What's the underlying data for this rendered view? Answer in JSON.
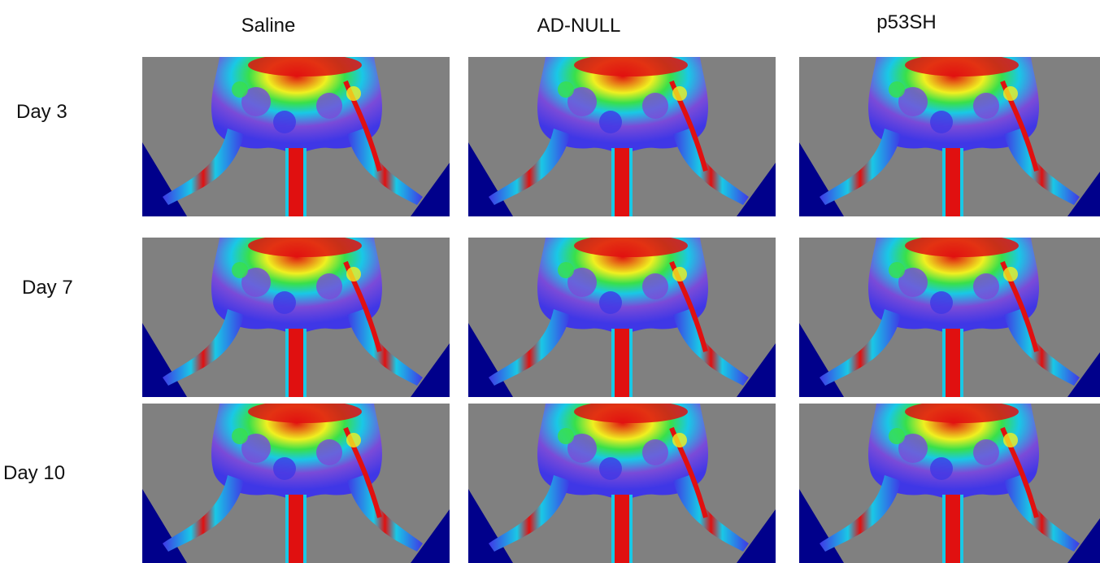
{
  "columns": [
    "Saline",
    "AD-NULL",
    "p53SH"
  ],
  "rows": [
    "Day 3",
    "Day 7",
    "Day 10"
  ],
  "colors": {
    "background": "#808080",
    "deep_blue": "#00008b",
    "blue": "#3f37e6",
    "violet": "#7a4bd8",
    "cyan": "#19c8e6",
    "green": "#39e04a",
    "yellow": "#f0f020",
    "red": "#e01010"
  },
  "panels": [
    {
      "group": "Saline",
      "day": "Day 3",
      "icon": "perfusion-heatmap"
    },
    {
      "group": "AD-NULL",
      "day": "Day 3",
      "icon": "perfusion-heatmap"
    },
    {
      "group": "p53SH",
      "day": "Day 3",
      "icon": "perfusion-heatmap"
    },
    {
      "group": "Saline",
      "day": "Day 7",
      "icon": "perfusion-heatmap"
    },
    {
      "group": "AD-NULL",
      "day": "Day 7",
      "icon": "perfusion-heatmap"
    },
    {
      "group": "p53SH",
      "day": "Day 7",
      "icon": "perfusion-heatmap"
    },
    {
      "group": "Saline",
      "day": "Day 10",
      "icon": "perfusion-heatmap"
    },
    {
      "group": "AD-NULL",
      "day": "Day 10",
      "icon": "perfusion-heatmap"
    },
    {
      "group": "p53SH",
      "day": "Day 10",
      "icon": "perfusion-heatmap"
    }
  ]
}
